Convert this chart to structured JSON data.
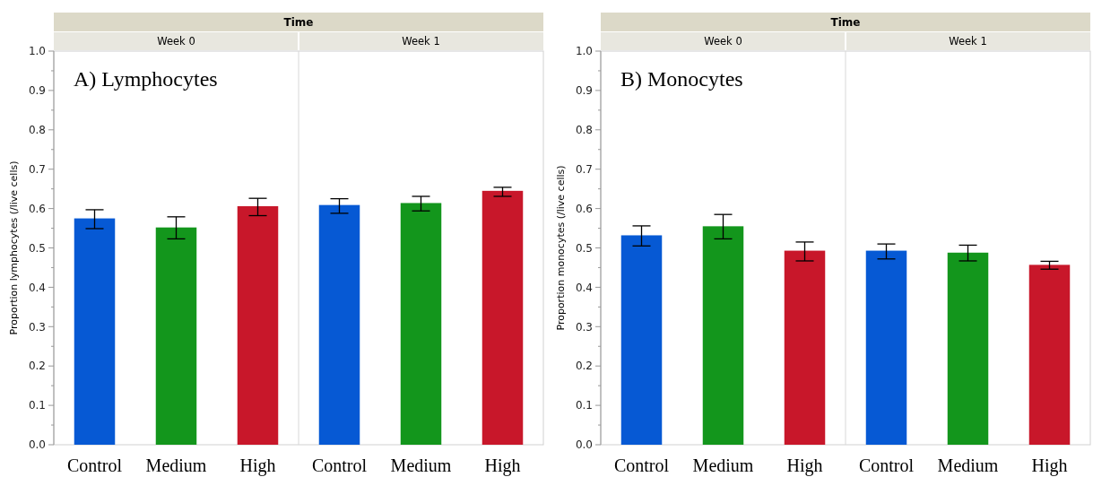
{
  "chart_data": [
    {
      "type": "bar",
      "title": "A) Lymphocytes",
      "ylabel": "Proportion lymphocytes (/live cells)",
      "categories": [
        "Control",
        "Medium",
        "High",
        "Control",
        "Medium",
        "High"
      ],
      "values": [
        0.575,
        0.552,
        0.606,
        0.609,
        0.614,
        0.645
      ],
      "colors": [
        "#0659d4",
        "#13961c",
        "#c8172a",
        "#0659d4",
        "#13961c",
        "#c8172a"
      ],
      "errors": [
        [
          0.549,
          0.597
        ],
        [
          0.523,
          0.579
        ],
        [
          0.582,
          0.626
        ],
        [
          0.588,
          0.625
        ],
        [
          0.594,
          0.631
        ],
        [
          0.631,
          0.654
        ]
      ],
      "ylim": [
        0,
        1
      ],
      "yticks": [
        {
          "value": 0,
          "label": "0.0"
        },
        {
          "value": 0.05,
          "label": null
        },
        0.1,
        {
          "value": 0.15,
          "label": null
        },
        0.2,
        {
          "value": 0.25,
          "label": null
        },
        0.3,
        {
          "value": 0.35,
          "label": null
        },
        0.4,
        {
          "value": 0.45,
          "label": null
        },
        0.5,
        {
          "value": 0.55,
          "label": null
        },
        0.6,
        {
          "value": 0.65,
          "label": null
        },
        0.7,
        {
          "value": 0.75,
          "label": null
        },
        0.8,
        {
          "value": 0.85,
          "label": null
        },
        0.9,
        {
          "value": 0.95,
          "label": null
        },
        {
          "value": 1,
          "label": "1.0"
        }
      ],
      "annotations": [
        "Time",
        "Week 0",
        "Week 1"
      ],
      "grid": false
    },
    {
      "type": "bar",
      "title": "B) Monocytes",
      "ylabel": "Proportion monocytes (/live cells)",
      "categories": [
        "Control",
        "Medium",
        "High",
        "Control",
        "Medium",
        "High"
      ],
      "values": [
        0.532,
        0.555,
        0.493,
        0.493,
        0.488,
        0.457
      ],
      "colors": [
        "#0659d4",
        "#13961c",
        "#c8172a",
        "#0659d4",
        "#13961c",
        "#c8172a"
      ],
      "errors": [
        [
          0.505,
          0.556
        ],
        [
          0.523,
          0.585
        ],
        [
          0.467,
          0.515
        ],
        [
          0.472,
          0.51
        ],
        [
          0.467,
          0.507
        ],
        [
          0.446,
          0.466
        ]
      ],
      "ylim": [
        0,
        1
      ],
      "yticks": [
        {
          "value": 0,
          "label": "0.0"
        },
        {
          "value": 0.05,
          "label": null
        },
        0.1,
        {
          "value": 0.15,
          "label": null
        },
        0.2,
        {
          "value": 0.25,
          "label": null
        },
        0.3,
        {
          "value": 0.35,
          "label": null
        },
        0.4,
        {
          "value": 0.45,
          "label": null
        },
        0.5,
        {
          "value": 0.55,
          "label": null
        },
        0.6,
        {
          "value": 0.65,
          "label": null
        },
        0.7,
        {
          "value": 0.75,
          "label": null
        },
        0.8,
        {
          "value": 0.85,
          "label": null
        },
        0.9,
        {
          "value": 0.95,
          "label": null
        },
        {
          "value": 1,
          "label": "1.0"
        }
      ],
      "annotations": [
        "Time",
        "Week 0",
        "Week 1"
      ],
      "grid": false
    }
  ]
}
